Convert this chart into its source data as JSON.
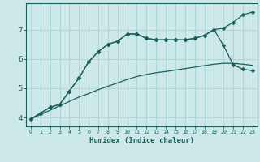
{
  "xlabel": "Humidex (Indice chaleur)",
  "x": [
    0,
    1,
    2,
    3,
    4,
    5,
    6,
    7,
    8,
    9,
    10,
    11,
    12,
    13,
    14,
    15,
    16,
    17,
    18,
    19,
    20,
    21,
    22,
    23
  ],
  "line1": [
    3.95,
    4.15,
    4.35,
    4.45,
    4.9,
    5.35,
    5.9,
    6.25,
    6.5,
    6.6,
    6.85,
    6.85,
    6.7,
    6.65,
    6.65,
    6.65,
    6.65,
    6.7,
    6.8,
    7.0,
    7.05,
    7.25,
    7.5,
    7.6
  ],
  "line2": [
    3.95,
    4.15,
    4.35,
    4.45,
    4.9,
    5.35,
    5.9,
    6.25,
    6.5,
    6.6,
    6.85,
    6.85,
    6.7,
    6.65,
    6.65,
    6.65,
    6.65,
    6.7,
    6.8,
    7.0,
    6.45,
    5.8,
    5.65,
    5.6
  ],
  "line3": [
    3.95,
    4.1,
    4.25,
    4.4,
    4.55,
    4.7,
    4.82,
    4.95,
    5.07,
    5.18,
    5.3,
    5.4,
    5.47,
    5.53,
    5.57,
    5.62,
    5.67,
    5.72,
    5.77,
    5.82,
    5.85,
    5.85,
    5.82,
    5.78
  ],
  "line_color": "#1a5f5a",
  "bg_color": "#cce8e8",
  "grid_color": "#a8d4d4",
  "marker_size": 2.5,
  "ylim": [
    3.7,
    7.9
  ],
  "xlim": [
    -0.5,
    23.5
  ],
  "yticks": [
    4,
    5,
    6,
    7
  ],
  "xticks": [
    0,
    1,
    2,
    3,
    4,
    5,
    6,
    7,
    8,
    9,
    10,
    11,
    12,
    13,
    14,
    15,
    16,
    17,
    18,
    19,
    20,
    21,
    22,
    23
  ]
}
